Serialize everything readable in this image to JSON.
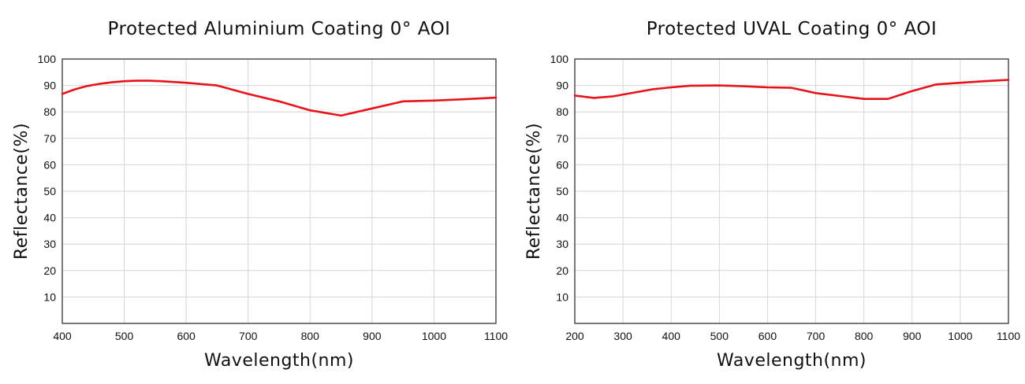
{
  "colors": {
    "series": "#e8131a",
    "grid": "#d6d6d6",
    "frame": "#222222"
  },
  "chart_data": [
    {
      "type": "line",
      "title": "Protected Aluminium Coating 0° AOI",
      "xlabel": "Wavelength(nm)",
      "ylabel": "Reflectance(%)",
      "xlim": [
        400,
        1100
      ],
      "ylim": [
        0,
        100
      ],
      "xticks": [
        "400",
        "500",
        "600",
        "700",
        "800",
        "900",
        "1000",
        "1100"
      ],
      "yticks": [
        "10",
        "20",
        "30",
        "40",
        "50",
        "60",
        "70",
        "80",
        "90",
        "100"
      ],
      "grid": true,
      "series": [
        {
          "color": "#e8131a",
          "x": [
            400,
            420,
            440,
            460,
            480,
            500,
            520,
            540,
            560,
            600,
            650,
            700,
            750,
            800,
            850,
            900,
            950,
            1000,
            1050,
            1100
          ],
          "y": [
            86.8,
            88.5,
            89.8,
            90.6,
            91.2,
            91.6,
            91.8,
            91.8,
            91.6,
            91.0,
            90.0,
            86.8,
            84.0,
            80.6,
            78.6,
            81.3,
            84.0,
            84.3,
            84.8,
            85.4
          ]
        }
      ]
    },
    {
      "type": "line",
      "title": "Protected UVAL Coating 0° AOI",
      "xlabel": "Wavelength(nm)",
      "ylabel": "Reflectance(%)",
      "xlim": [
        200,
        1100
      ],
      "ylim": [
        0,
        100
      ],
      "xticks": [
        "200",
        "300",
        "400",
        "500",
        "600",
        "700",
        "800",
        "900",
        "1000",
        "1100"
      ],
      "yticks": [
        "10",
        "20",
        "30",
        "40",
        "50",
        "60",
        "70",
        "80",
        "90",
        "100"
      ],
      "grid": true,
      "series": [
        {
          "color": "#e8131a",
          "x": [
            200,
            240,
            280,
            320,
            360,
            400,
            440,
            500,
            550,
            600,
            650,
            700,
            750,
            800,
            850,
            900,
            950,
            1000,
            1050,
            1100
          ],
          "y": [
            86.2,
            85.3,
            85.9,
            87.2,
            88.5,
            89.3,
            89.9,
            90.0,
            89.7,
            89.3,
            89.1,
            87.1,
            86.0,
            84.9,
            84.9,
            87.9,
            90.4,
            91.0,
            91.6,
            92.1
          ]
        }
      ]
    }
  ]
}
